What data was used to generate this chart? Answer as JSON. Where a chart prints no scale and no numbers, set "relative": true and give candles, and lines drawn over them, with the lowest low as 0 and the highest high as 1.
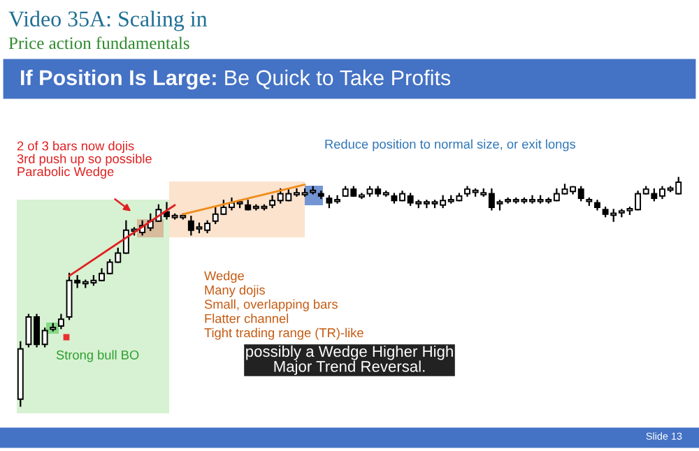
{
  "chart_data": {
    "type": "candlestick",
    "title": "Video 35A: Scaling in",
    "subtitle": "Price action fundamentals",
    "relative": true,
    "categories": [
      null,
      null,
      null,
      null,
      null,
      null,
      null,
      null,
      null,
      null,
      null,
      null,
      null,
      null,
      null,
      null,
      null,
      null,
      null,
      null,
      null,
      null,
      null,
      null,
      null,
      null,
      null,
      null,
      null,
      null,
      null,
      null,
      null,
      null,
      null,
      null,
      null,
      null,
      null,
      null,
      null,
      null,
      null,
      null,
      null,
      null,
      null,
      null,
      null,
      null,
      null,
      null,
      null,
      null,
      null,
      null,
      null,
      null,
      null,
      null,
      null,
      null,
      null,
      null,
      null,
      null,
      null,
      null,
      null,
      null,
      null,
      null,
      null,
      null,
      null,
      null,
      null,
      null,
      null,
      null,
      null,
      null
    ],
    "ohlc": [
      [
        0.03,
        0.28,
        0,
        0.25
      ],
      [
        0.27,
        0.4,
        0.26,
        0.39
      ],
      [
        0.39,
        0.4,
        0.26,
        0.27
      ],
      [
        0.27,
        0.34,
        0.26,
        0.33
      ],
      [
        0.34,
        0.36,
        0.33,
        0.34
      ],
      [
        0.35,
        0.4,
        0.34,
        0.38
      ],
      [
        0.39,
        0.58,
        0.38,
        0.55
      ],
      [
        0.55,
        0.57,
        0.52,
        0.54
      ],
      [
        0.54,
        0.55,
        0.52,
        0.54
      ],
      [
        0.54,
        0.57,
        0.53,
        0.55
      ],
      [
        0.55,
        0.6,
        0.55,
        0.58
      ],
      [
        0.58,
        0.64,
        0.58,
        0.63
      ],
      [
        0.63,
        0.69,
        0.63,
        0.67
      ],
      [
        0.67,
        0.81,
        0.67,
        0.77
      ],
      [
        0.77,
        0.78,
        0.75,
        0.77
      ],
      [
        0.76,
        0.81,
        0.75,
        0.79
      ],
      [
        0.78,
        0.84,
        0.77,
        0.81
      ],
      [
        0.81,
        0.88,
        0.81,
        0.86
      ],
      [
        0.85,
        0.89,
        0.82,
        0.83
      ],
      [
        0.83,
        0.84,
        0.82,
        0.83
      ],
      [
        0.83,
        0.84,
        0.82,
        0.83
      ],
      [
        0.81,
        0.83,
        0.75,
        0.77
      ],
      [
        0.78,
        0.8,
        0.76,
        0.78
      ],
      [
        0.77,
        0.81,
        0.76,
        0.8
      ],
      [
        0.81,
        0.87,
        0.8,
        0.84
      ],
      [
        0.84,
        0.9,
        0.84,
        0.87
      ],
      [
        0.87,
        0.91,
        0.86,
        0.89
      ],
      [
        0.89,
        0.9,
        0.87,
        0.89
      ],
      [
        0.88,
        0.9,
        0.86,
        0.86
      ],
      [
        0.87,
        0.88,
        0.86,
        0.87
      ],
      [
        0.87,
        0.88,
        0.86,
        0.87
      ],
      [
        0.88,
        0.92,
        0.87,
        0.9
      ],
      [
        0.9,
        0.95,
        0.89,
        0.93
      ],
      [
        0.9,
        0.95,
        0.9,
        0.93
      ],
      [
        0.93,
        0.95,
        0.92,
        0.93
      ],
      [
        0.93,
        0.95,
        0.92,
        0.93
      ],
      [
        0.94,
        0.96,
        0.93,
        0.94
      ],
      [
        0.93,
        0.94,
        0.91,
        0.92
      ],
      [
        0.91,
        0.92,
        0.87,
        0.89
      ],
      [
        0.9,
        0.92,
        0.89,
        0.9
      ],
      [
        0.92,
        0.96,
        0.92,
        0.95
      ],
      [
        0.95,
        0.96,
        0.92,
        0.92
      ],
      [
        0.92,
        0.93,
        0.91,
        0.92
      ],
      [
        0.93,
        0.96,
        0.92,
        0.95
      ],
      [
        0.95,
        0.96,
        0.92,
        0.93
      ],
      [
        0.93,
        0.94,
        0.92,
        0.93
      ],
      [
        0.92,
        0.93,
        0.89,
        0.9
      ],
      [
        0.9,
        0.94,
        0.9,
        0.93
      ],
      [
        0.92,
        0.93,
        0.88,
        0.89
      ],
      [
        0.89,
        0.9,
        0.87,
        0.89
      ],
      [
        0.89,
        0.9,
        0.87,
        0.89
      ],
      [
        0.89,
        0.9,
        0.87,
        0.89
      ],
      [
        0.88,
        0.92,
        0.87,
        0.9
      ],
      [
        0.9,
        0.92,
        0.89,
        0.9
      ],
      [
        0.9,
        0.93,
        0.9,
        0.92
      ],
      [
        0.93,
        0.96,
        0.92,
        0.95
      ],
      [
        0.94,
        0.95,
        0.92,
        0.94
      ],
      [
        0.93,
        0.95,
        0.92,
        0.93
      ],
      [
        0.93,
        0.95,
        0.86,
        0.87
      ],
      [
        0.89,
        0.9,
        0.86,
        0.89
      ],
      [
        0.9,
        0.91,
        0.89,
        0.9
      ],
      [
        0.9,
        0.91,
        0.89,
        0.9
      ],
      [
        0.9,
        0.91,
        0.89,
        0.9
      ],
      [
        0.9,
        0.92,
        0.89,
        0.9
      ],
      [
        0.9,
        0.92,
        0.89,
        0.9
      ],
      [
        0.9,
        0.91,
        0.89,
        0.9
      ],
      [
        0.9,
        0.95,
        0.9,
        0.93
      ],
      [
        0.93,
        0.97,
        0.93,
        0.95
      ],
      [
        0.94,
        0.96,
        0.93,
        0.96
      ],
      [
        0.95,
        0.96,
        0.9,
        0.91
      ],
      [
        0.9,
        0.91,
        0.88,
        0.9
      ],
      [
        0.89,
        0.9,
        0.86,
        0.87
      ],
      [
        0.86,
        0.87,
        0.83,
        0.84
      ],
      [
        0.84,
        0.86,
        0.81,
        0.84
      ],
      [
        0.85,
        0.86,
        0.83,
        0.85
      ],
      [
        0.86,
        0.87,
        0.84,
        0.86
      ],
      [
        0.86,
        0.94,
        0.86,
        0.93
      ],
      [
        0.93,
        0.96,
        0.93,
        0.95
      ],
      [
        0.93,
        0.95,
        0.9,
        0.91
      ],
      [
        0.92,
        0.96,
        0.91,
        0.95
      ],
      [
        0.95,
        0.96,
        0.94,
        0.95
      ],
      [
        0.93,
        1.0,
        0.93,
        0.98
      ]
    ],
    "series": [
      {
        "type": "line",
        "color": "#e02020",
        "values": [
          null,
          null,
          null,
          null,
          null,
          null,
          0.57,
          null,
          null,
          null,
          null,
          null,
          null,
          null,
          null,
          null,
          null,
          null,
          null,
          0.88,
          null,
          null,
          null,
          null,
          null,
          null,
          null,
          null,
          null,
          null,
          null,
          null,
          null,
          null,
          null,
          null,
          null,
          null,
          null,
          null,
          null,
          null,
          null,
          null,
          null,
          null,
          null,
          null,
          null,
          null,
          null,
          null,
          null,
          null,
          null,
          null,
          null,
          null,
          null,
          null,
          null,
          null,
          null,
          null,
          null,
          null,
          null,
          null,
          null,
          null,
          null,
          null,
          null,
          null,
          null,
          null,
          null,
          null,
          null,
          null,
          null,
          null
        ]
      },
      {
        "type": "line",
        "color": "#f08c1a",
        "values": [
          null,
          null,
          null,
          null,
          null,
          null,
          null,
          null,
          null,
          null,
          null,
          null,
          null,
          null,
          null,
          null,
          null,
          null,
          null,
          null,
          0.84,
          null,
          null,
          null,
          null,
          null,
          null,
          null,
          null,
          null,
          null,
          null,
          null,
          null,
          null,
          0.97,
          null,
          null,
          null,
          null,
          null,
          null,
          null,
          null,
          null,
          null,
          null,
          null,
          null,
          null,
          null,
          null,
          null,
          null,
          null,
          null,
          null,
          null,
          null,
          null,
          null,
          null,
          null,
          null,
          null,
          null,
          null,
          null,
          null,
          null,
          null,
          null,
          null,
          null,
          null,
          null,
          null,
          null,
          null,
          null,
          null,
          null
        ]
      }
    ],
    "annotations": [
      "If Position Is Large:",
      "Be Quick to Take Profits",
      "2 of 3 bars now dojis\n3rd push up so possible\nParabolic Wedge",
      "Reduce position to normal size, or exit longs",
      "Strong bull BO",
      "Wedge\nMany dojis\nSmall, overlapping bars\nFlatter channel\nTight trading range (TR)-like",
      "possibly a Wedge Higher High\nMajor Trend Reversal.",
      "Slide 13"
    ]
  }
}
